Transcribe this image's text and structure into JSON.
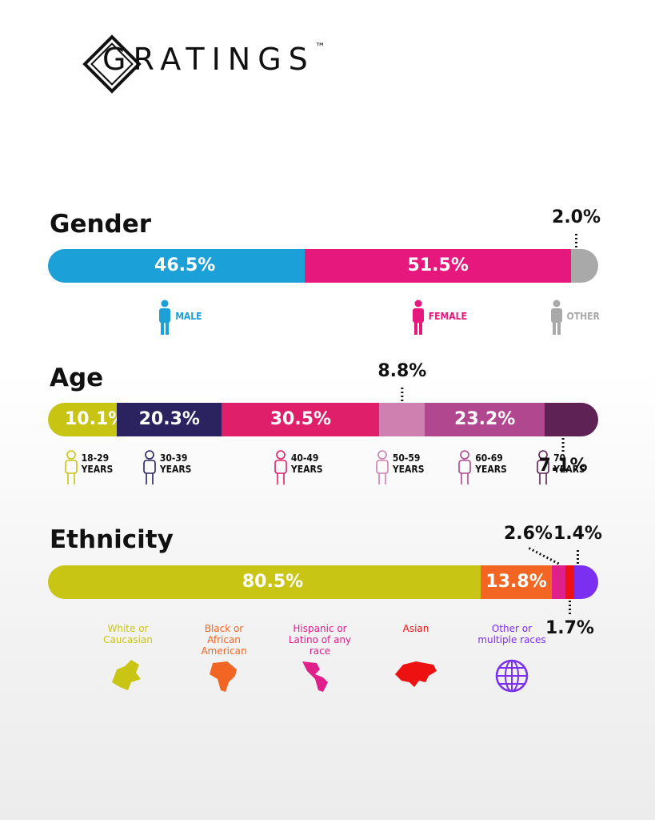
{
  "brand": {
    "name": "GRATINGS",
    "trademark": "™"
  },
  "chart_data": [
    {
      "type": "stacked-bar",
      "title": "Gender",
      "series": [
        {
          "name": "MALE",
          "color": "#1ba0d8",
          "values": [
            46.5
          ],
          "value_labels": [
            "46.5%"
          ]
        },
        {
          "name": "FEMALE",
          "color": "#e6177d",
          "values": [
            51.5
          ],
          "value_labels": [
            "51.5%"
          ]
        },
        {
          "name": "OTHER",
          "color": "#a9a9a9",
          "values": [
            2.0
          ],
          "value_labels": [
            "2.0%"
          ]
        }
      ]
    },
    {
      "type": "stacked-bar",
      "title": "Age",
      "series": [
        {
          "name": "18-29 YEARS",
          "color": "#c8c414",
          "values": [
            10.1
          ],
          "value_labels": [
            "10.1%"
          ]
        },
        {
          "name": "30-39 YEARS",
          "color": "#2a2360",
          "values": [
            20.3
          ],
          "value_labels": [
            "20.3%"
          ]
        },
        {
          "name": "40-49 YEARS",
          "color": "#e01f6a",
          "values": [
            30.5
          ],
          "value_labels": [
            "30.5%"
          ]
        },
        {
          "name": "50-59 YEARS",
          "color": "#cf7fb0",
          "values": [
            8.8
          ],
          "value_labels": [
            "8.8%"
          ]
        },
        {
          "name": "60-69 YEARS",
          "color": "#b0478f",
          "values": [
            23.2
          ],
          "value_labels": [
            "23.2%"
          ]
        },
        {
          "name": "70 YEARS",
          "color": "#5e2354",
          "values": [
            7.1
          ],
          "value_labels": [
            "7.1%"
          ]
        }
      ]
    },
    {
      "type": "stacked-bar",
      "title": "Ethnicity",
      "series": [
        {
          "name": "White or Caucasian",
          "color": "#c9c514",
          "values": [
            80.5
          ],
          "value_labels": [
            "80.5%"
          ]
        },
        {
          "name": "Black or African American",
          "color": "#f26522",
          "values": [
            13.8
          ],
          "value_labels": [
            "13.8%"
          ]
        },
        {
          "name": "Hispanic or Latino of any race",
          "color": "#e0208a",
          "values": [
            2.6
          ],
          "value_labels": [
            "2.6%"
          ]
        },
        {
          "name": "Asian",
          "color": "#ee1111",
          "values": [
            1.7
          ],
          "value_labels": [
            "1.7%"
          ]
        },
        {
          "name": "Other or multiple races",
          "color": "#7b2ff0",
          "values": [
            1.4
          ],
          "value_labels": [
            "1.4%"
          ]
        }
      ]
    }
  ]
}
